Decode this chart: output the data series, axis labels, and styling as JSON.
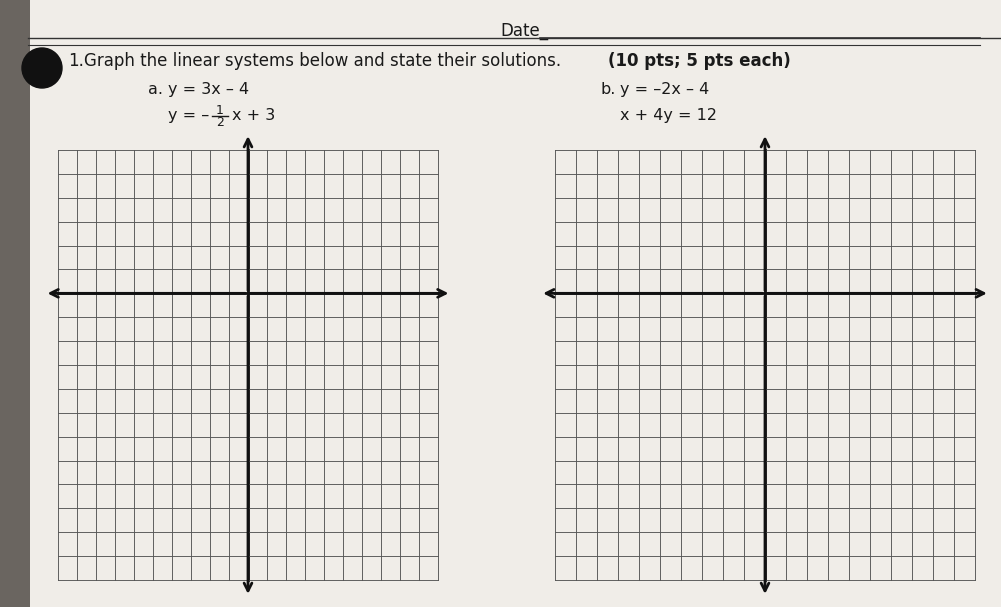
{
  "background_color": "#c8c4be",
  "page_color": "#f0ede8",
  "grid_color": "#555555",
  "axis_color": "#111111",
  "text_color": "#1a1a1a",
  "date_label": "Date_",
  "problem_label": "1.",
  "problem_text": "Graph the linear systems below and state their solutions.",
  "bold_text": "(10 pts; 5 pts each)",
  "label_a": "a.",
  "eq_a1": "y = 3x – 4",
  "eq_a2_pre": "y = –",
  "frac_num": "1",
  "frac_den": "2",
  "eq_a2_post": "x + 3",
  "label_b": "b.",
  "eq_b1": "y = –2x – 4",
  "eq_b2": "x + 4y = 12",
  "nx": 20,
  "ny": 18,
  "axis_col_idx": 10,
  "axis_row_idx": 6,
  "grid_lw": 0.65,
  "axis_lw": 2.0,
  "fontsize_main": 12,
  "fontsize_eq": 11.5
}
